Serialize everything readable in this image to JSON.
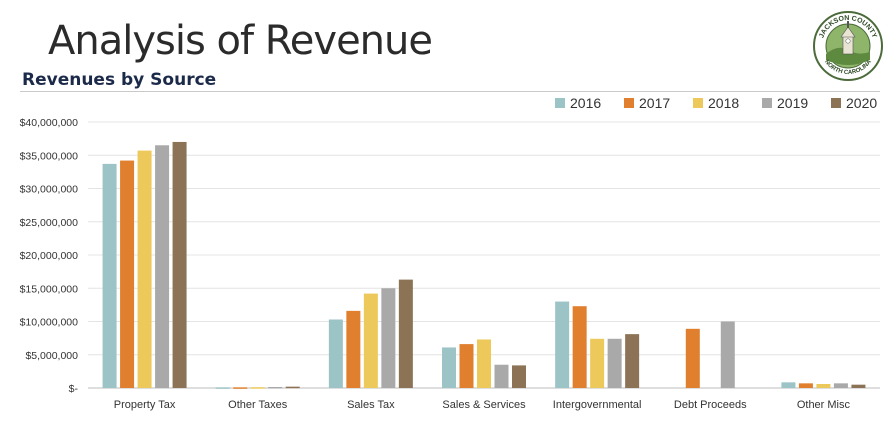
{
  "page": {
    "title": "Analysis of Revenue",
    "subtitle": "Revenues by Source"
  },
  "logo": {
    "top_text": "JACKSON COUNTY",
    "bottom_text": "NORTH CAROLINA"
  },
  "chart_data": {
    "type": "bar",
    "title": "Revenues by Source",
    "xlabel": "",
    "ylabel": "",
    "ylim": [
      0,
      40000000
    ],
    "yticks": [
      0,
      5000000,
      10000000,
      15000000,
      20000000,
      25000000,
      30000000,
      35000000,
      40000000
    ],
    "ytick_labels": [
      "$-",
      "$5,000,000",
      "$10,000,000",
      "$15,000,000",
      "$20,000,000",
      "$25,000,000",
      "$30,000,000",
      "$35,000,000",
      "$40,000,000"
    ],
    "grid": true,
    "legend_position": "top-right",
    "categories": [
      "Property Tax",
      "Other Taxes",
      "Sales Tax",
      "Sales & Services",
      "Intergovernmental",
      "Debt Proceeds",
      "Other Misc"
    ],
    "series": [
      {
        "name": "2016",
        "color": "#9cc3c5",
        "values": [
          33700000,
          100000,
          10300000,
          6100000,
          13000000,
          0,
          850000
        ]
      },
      {
        "name": "2017",
        "color": "#e07f2e",
        "values": [
          34200000,
          100000,
          11600000,
          6600000,
          12300000,
          8900000,
          700000
        ]
      },
      {
        "name": "2018",
        "color": "#ecc95a",
        "values": [
          35700000,
          120000,
          14200000,
          7300000,
          7400000,
          0,
          600000
        ]
      },
      {
        "name": "2019",
        "color": "#a9a9a9",
        "values": [
          36500000,
          150000,
          15000000,
          3500000,
          7400000,
          10000000,
          700000
        ]
      },
      {
        "name": "2020",
        "color": "#8c7356",
        "values": [
          37000000,
          200000,
          16300000,
          3400000,
          8100000,
          0,
          500000
        ]
      }
    ]
  }
}
